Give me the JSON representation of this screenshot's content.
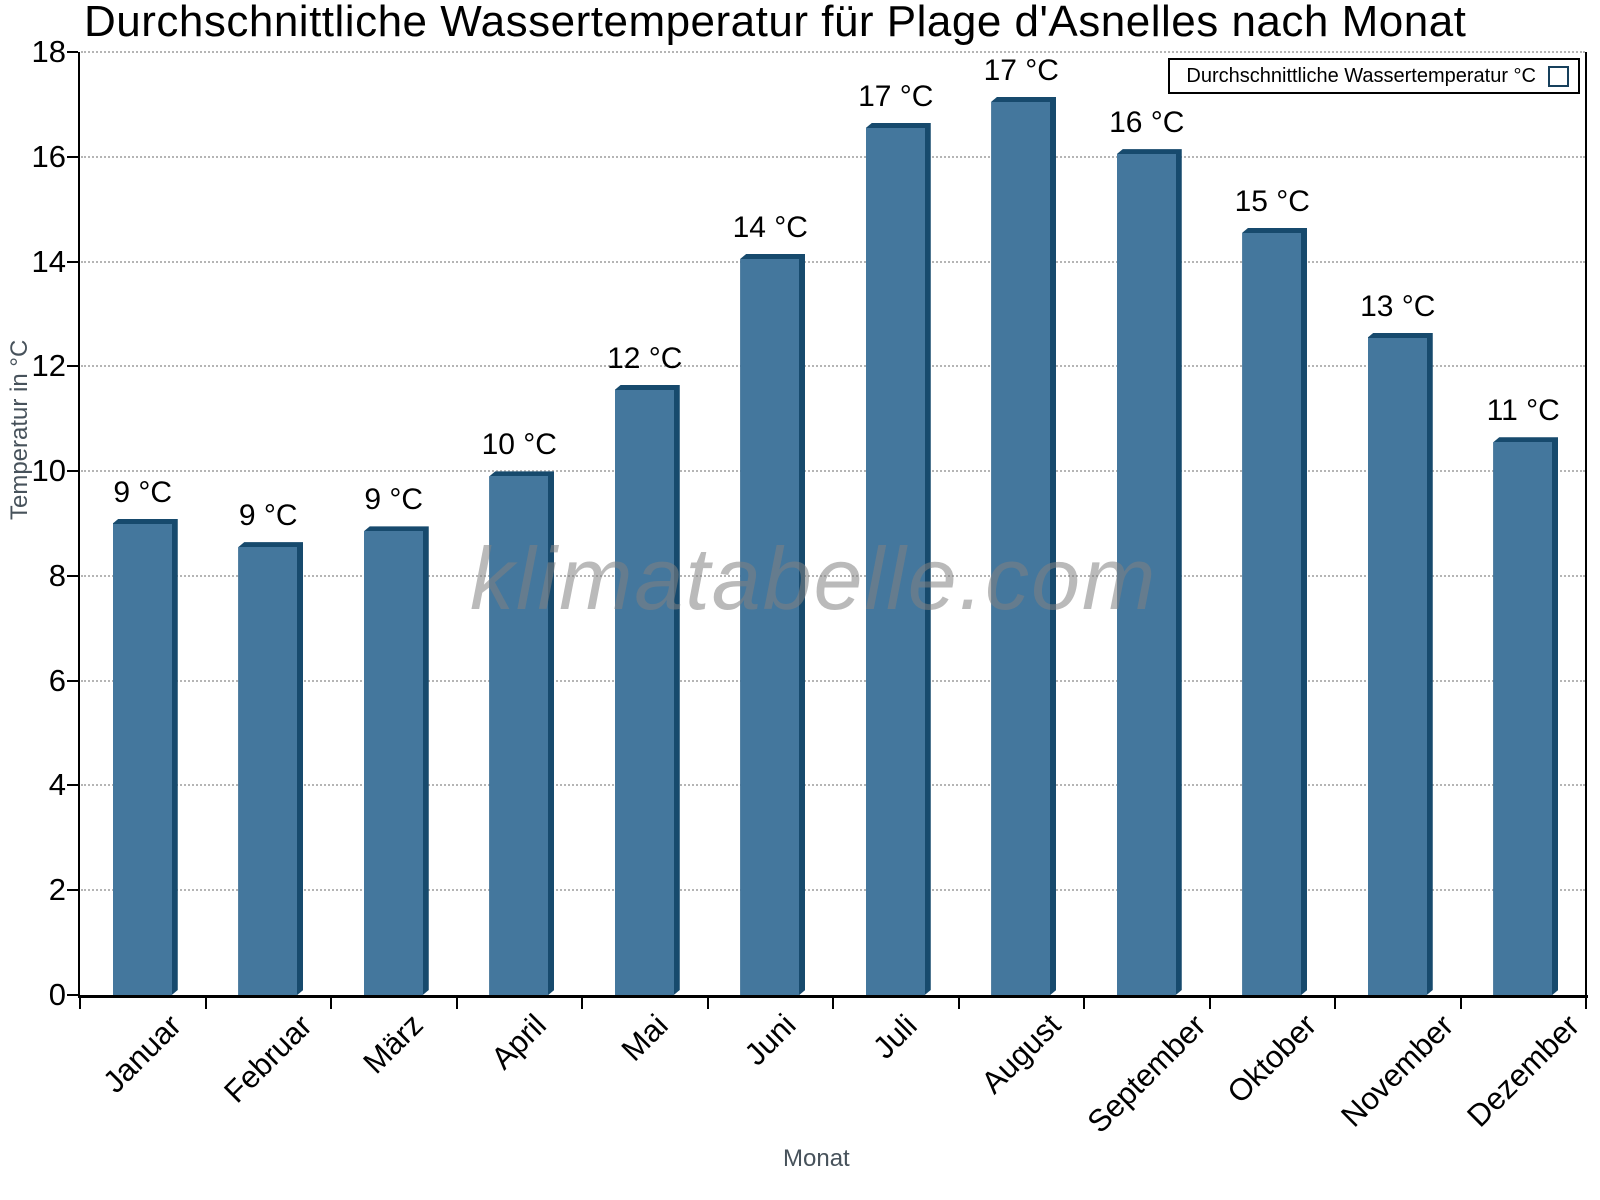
{
  "title": "Durchschnittliche Wassertemperatur für Plage d'Asnelles nach Monat",
  "legend": {
    "label": "Durchschnittliche Wassertemperatur °C"
  },
  "watermark": "klimatabelle.com",
  "axes": {
    "x_title": "Monat",
    "y_title": "Temperatur in °C",
    "y_tick_labels": [
      "0",
      "2",
      "4",
      "6",
      "8",
      "10",
      "12",
      "14",
      "16",
      "18"
    ]
  },
  "chart_data": {
    "type": "bar",
    "title": "Durchschnittliche Wassertemperatur für Plage d'Asnelles nach Monat",
    "xlabel": "Monat",
    "ylabel": "Temperatur in °C",
    "ylim": [
      0,
      18
    ],
    "y_step": 2,
    "grid": "horizontal-dotted",
    "legend_position": "top-right",
    "series_name": "Durchschnittliche Wassertemperatur °C",
    "categories": [
      "Januar",
      "Februar",
      "März",
      "April",
      "Mai",
      "Juni",
      "Juli",
      "August",
      "September",
      "Oktober",
      "November",
      "Dezember"
    ],
    "values": [
      9.0,
      8.55,
      8.85,
      9.9,
      11.55,
      14.05,
      16.55,
      17.05,
      16.05,
      14.55,
      12.55,
      10.55
    ],
    "value_labels": [
      "9 °C",
      "9 °C",
      "9 °C",
      "10 °C",
      "12 °C",
      "14 °C",
      "17 °C",
      "17 °C",
      "16 °C",
      "15 °C",
      "13 °C",
      "11 °C"
    ],
    "bar_color": "#44779d",
    "bar_shadow_color": "#174a6d"
  }
}
